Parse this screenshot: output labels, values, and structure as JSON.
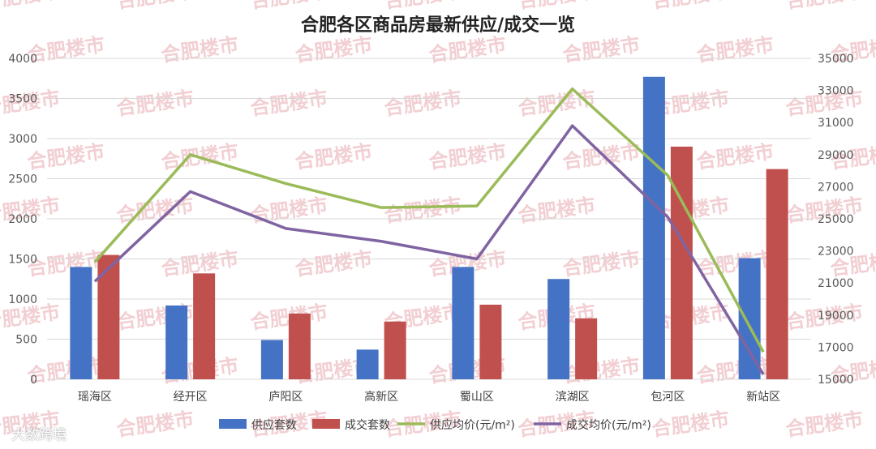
{
  "chart_data": {
    "type": "bar",
    "title": "合肥各区商品房最新供应/成交一览",
    "categories": [
      "瑶海区",
      "经开区",
      "庐阳区",
      "高新区",
      "蜀山区",
      "滨湖区",
      "包河区",
      "新站区"
    ],
    "left_axis": {
      "ticks": [
        "0",
        "500",
        "1000",
        "1500",
        "2000",
        "2500",
        "3000",
        "3500",
        "4000"
      ],
      "ylim": [
        0,
        4000
      ]
    },
    "right_axis": {
      "ticks": [
        "15000",
        "17000",
        "19000",
        "21000",
        "23000",
        "25000",
        "27000",
        "29000",
        "31000",
        "33000",
        "35000"
      ],
      "ylim": [
        15000,
        35000
      ]
    },
    "bar_series": [
      {
        "name": "供应套数",
        "color": "#4472c4",
        "values": [
          1400,
          920,
          490,
          370,
          1400,
          1250,
          3770,
          1510
        ]
      },
      {
        "name": "成交套数",
        "color": "#c0504d",
        "values": [
          1550,
          1320,
          820,
          720,
          930,
          760,
          2900,
          2620
        ]
      }
    ],
    "line_series": [
      {
        "name": "供应均价(元/m²)",
        "color": "#9bbb59",
        "values": [
          22300,
          29000,
          27200,
          25700,
          25800,
          33100,
          27700,
          16700
        ]
      },
      {
        "name": "成交均价(元/m²)",
        "color": "#8064a2",
        "values": [
          21100,
          26700,
          24400,
          23600,
          22500,
          30800,
          25100,
          15300
        ]
      }
    ],
    "legend_position": "bottom",
    "grid": true
  },
  "watermark": {
    "text": "合肥楼市"
  },
  "brand": {
    "text": "大数跨境"
  }
}
